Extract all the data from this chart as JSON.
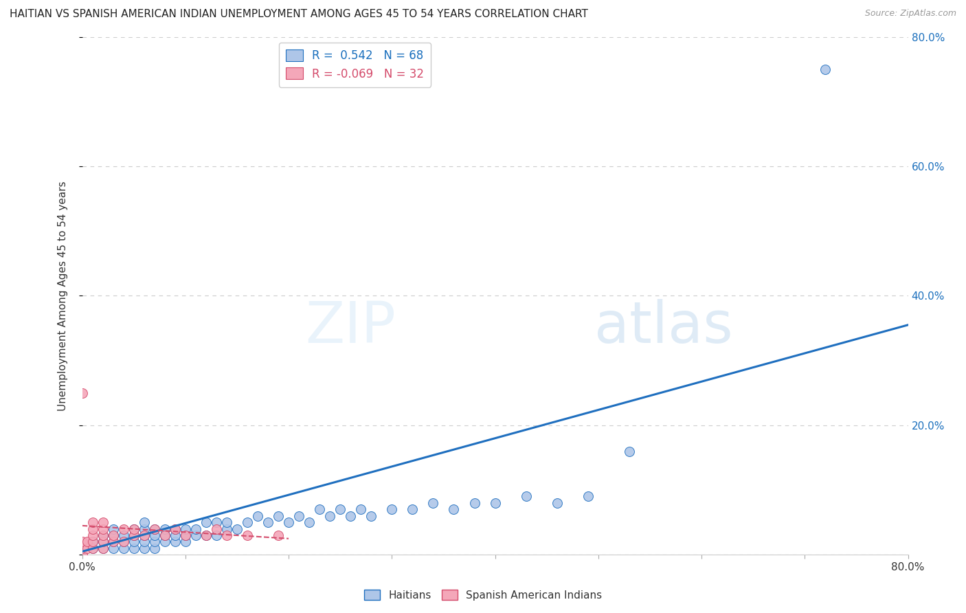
{
  "title": "HAITIAN VS SPANISH AMERICAN INDIAN UNEMPLOYMENT AMONG AGES 45 TO 54 YEARS CORRELATION CHART",
  "source": "Source: ZipAtlas.com",
  "ylabel": "Unemployment Among Ages 45 to 54 years",
  "xlim": [
    0,
    0.8
  ],
  "ylim": [
    0,
    0.8
  ],
  "grid_color": "#cccccc",
  "background_color": "#ffffff",
  "haitian_color": "#aec6e8",
  "haitian_line_color": "#1f6fbf",
  "spanish_color": "#f4a7b9",
  "spanish_line_color": "#d44b6b",
  "legend_R_haitian": "0.542",
  "legend_N_haitian": "68",
  "legend_R_spanish": "-0.069",
  "legend_N_spanish": "32",
  "title_fontsize": 11,
  "haitian_scatter_x": [
    0.0,
    0.01,
    0.01,
    0.02,
    0.02,
    0.02,
    0.03,
    0.03,
    0.03,
    0.03,
    0.04,
    0.04,
    0.04,
    0.05,
    0.05,
    0.05,
    0.05,
    0.06,
    0.06,
    0.06,
    0.06,
    0.06,
    0.07,
    0.07,
    0.07,
    0.07,
    0.08,
    0.08,
    0.08,
    0.09,
    0.09,
    0.09,
    0.1,
    0.1,
    0.1,
    0.11,
    0.11,
    0.12,
    0.12,
    0.13,
    0.13,
    0.14,
    0.14,
    0.15,
    0.16,
    0.17,
    0.18,
    0.19,
    0.2,
    0.21,
    0.22,
    0.23,
    0.24,
    0.25,
    0.26,
    0.27,
    0.28,
    0.3,
    0.32,
    0.34,
    0.36,
    0.38,
    0.4,
    0.43,
    0.46,
    0.49,
    0.53,
    0.72
  ],
  "haitian_scatter_y": [
    0.0,
    0.01,
    0.02,
    0.01,
    0.02,
    0.03,
    0.01,
    0.02,
    0.03,
    0.04,
    0.01,
    0.02,
    0.03,
    0.01,
    0.02,
    0.03,
    0.04,
    0.01,
    0.02,
    0.03,
    0.04,
    0.05,
    0.01,
    0.02,
    0.03,
    0.04,
    0.02,
    0.03,
    0.04,
    0.02,
    0.03,
    0.04,
    0.02,
    0.03,
    0.04,
    0.03,
    0.04,
    0.03,
    0.05,
    0.03,
    0.05,
    0.04,
    0.05,
    0.04,
    0.05,
    0.06,
    0.05,
    0.06,
    0.05,
    0.06,
    0.05,
    0.07,
    0.06,
    0.07,
    0.06,
    0.07,
    0.06,
    0.07,
    0.07,
    0.08,
    0.07,
    0.08,
    0.08,
    0.09,
    0.08,
    0.09,
    0.16,
    0.75
  ],
  "spanish_scatter_x": [
    0.0,
    0.0,
    0.0,
    0.0,
    0.005,
    0.005,
    0.01,
    0.01,
    0.01,
    0.01,
    0.01,
    0.02,
    0.02,
    0.02,
    0.02,
    0.02,
    0.03,
    0.03,
    0.04,
    0.04,
    0.05,
    0.05,
    0.06,
    0.07,
    0.08,
    0.09,
    0.1,
    0.12,
    0.13,
    0.14,
    0.16,
    0.19
  ],
  "spanish_scatter_y": [
    0.0,
    0.01,
    0.02,
    0.25,
    0.01,
    0.02,
    0.01,
    0.02,
    0.03,
    0.04,
    0.05,
    0.01,
    0.02,
    0.03,
    0.04,
    0.05,
    0.02,
    0.03,
    0.02,
    0.04,
    0.03,
    0.04,
    0.03,
    0.04,
    0.03,
    0.04,
    0.03,
    0.03,
    0.04,
    0.03,
    0.03,
    0.03
  ],
  "haitian_trend_x": [
    0.0,
    0.8
  ],
  "haitian_trend_y": [
    0.005,
    0.355
  ],
  "spanish_trend_x": [
    0.0,
    0.2
  ],
  "spanish_trend_y": [
    0.045,
    0.025
  ]
}
